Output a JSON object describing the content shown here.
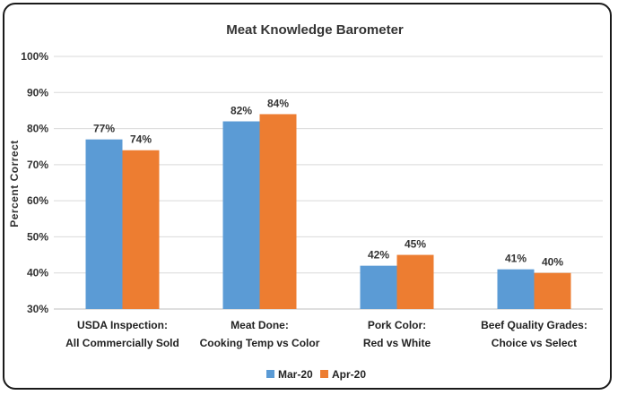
{
  "chart_data": {
    "type": "bar",
    "title": "Meat Knowledge Barometer",
    "xlabel": "",
    "ylabel": "Percent Correct",
    "ylim": [
      30,
      100
    ],
    "yticks": [
      "30%",
      "40%",
      "50%",
      "60%",
      "70%",
      "80%",
      "90%",
      "100%"
    ],
    "grid": true,
    "legend_position": "bottom",
    "categories": [
      [
        "USDA Inspection:",
        "All Commercially Sold"
      ],
      [
        "Meat Done:",
        "Cooking Temp vs Color"
      ],
      [
        "Pork Color:",
        "Red vs White"
      ],
      [
        "Beef Quality Grades:",
        "Choice vs Select"
      ]
    ],
    "series": [
      {
        "name": "Mar-20",
        "color": "#5b9bd5",
        "values": [
          77,
          82,
          42,
          41
        ],
        "labels": [
          "77%",
          "82%",
          "42%",
          "41%"
        ]
      },
      {
        "name": "Apr-20",
        "color": "#ed7d31",
        "values": [
          74,
          84,
          45,
          40
        ],
        "labels": [
          "74%",
          "84%",
          "45%",
          "40%"
        ]
      }
    ]
  }
}
